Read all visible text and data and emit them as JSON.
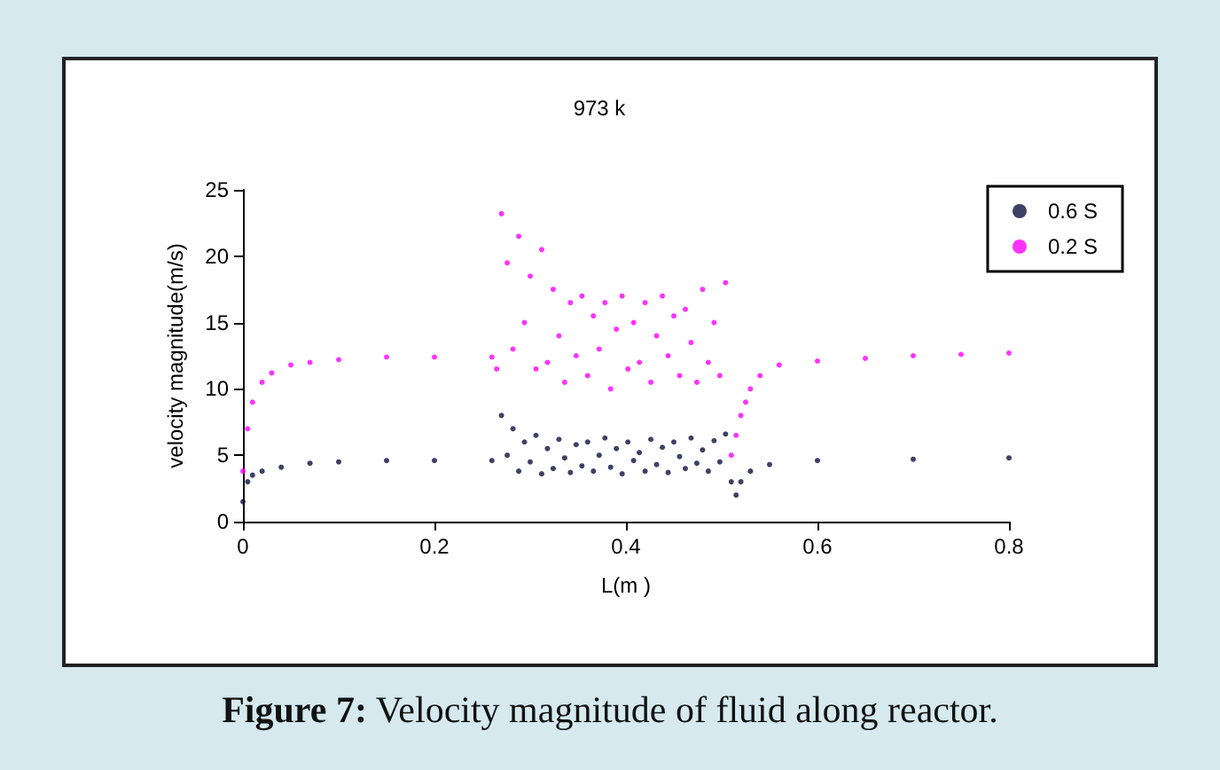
{
  "chart_data": {
    "type": "scatter",
    "title": "973 k",
    "xlabel": "L(m )",
    "ylabel": "velocity magnitude(m/s)",
    "annotations": [
      "Figure 7: Velocity magnitude of fluid along reactor."
    ],
    "xlim": [
      0,
      0.8
    ],
    "xticks": [
      0,
      0.2,
      0.4,
      0.6,
      0.8
    ],
    "ylim": [
      0,
      25
    ],
    "yticks": [
      0,
      5,
      10,
      15,
      20,
      25
    ],
    "grid": false,
    "legend": "top right",
    "marker": "circle",
    "series": [
      {
        "name": "0.6 S",
        "color": "#0d1240",
        "x": [
          0,
          0.005,
          0.01,
          0.02,
          0.04,
          0.07,
          0.1,
          0.15,
          0.2,
          0.26,
          0.27,
          0.276,
          0.282,
          0.288,
          0.294,
          0.3,
          0.306,
          0.312,
          0.318,
          0.324,
          0.33,
          0.336,
          0.342,
          0.348,
          0.354,
          0.36,
          0.366,
          0.372,
          0.378,
          0.384,
          0.39,
          0.396,
          0.402,
          0.408,
          0.414,
          0.42,
          0.426,
          0.432,
          0.438,
          0.444,
          0.45,
          0.456,
          0.462,
          0.468,
          0.474,
          0.48,
          0.486,
          0.492,
          0.498,
          0.504,
          0.51,
          0.515,
          0.52,
          0.53,
          0.55,
          0.6,
          0.7,
          0.8
        ],
        "values": [
          1.5,
          3,
          3.5,
          3.8,
          4.1,
          4.4,
          4.5,
          4.6,
          4.6,
          4.6,
          8,
          5,
          7,
          3.8,
          6,
          4.5,
          6.5,
          3.6,
          5.5,
          4,
          6.2,
          4.8,
          3.7,
          5.8,
          4.2,
          6,
          3.8,
          5,
          6.3,
          4.1,
          5.5,
          3.6,
          6,
          4.6,
          5.2,
          3.8,
          6.2,
          4.3,
          5.6,
          3.7,
          6,
          4.9,
          4,
          6.3,
          4.4,
          5.4,
          3.8,
          6.1,
          4.5,
          6.6,
          3,
          2,
          3,
          3.8,
          4.3,
          4.6,
          4.7,
          4.8
        ]
      },
      {
        "name": "0.2 S",
        "color": "#ff00ff",
        "x": [
          0,
          0.005,
          0.01,
          0.02,
          0.03,
          0.05,
          0.07,
          0.1,
          0.15,
          0.2,
          0.26,
          0.265,
          0.27,
          0.276,
          0.282,
          0.288,
          0.294,
          0.3,
          0.306,
          0.312,
          0.318,
          0.324,
          0.33,
          0.336,
          0.342,
          0.348,
          0.354,
          0.36,
          0.366,
          0.372,
          0.378,
          0.384,
          0.39,
          0.396,
          0.402,
          0.408,
          0.414,
          0.42,
          0.426,
          0.432,
          0.438,
          0.444,
          0.45,
          0.456,
          0.462,
          0.468,
          0.474,
          0.48,
          0.486,
          0.492,
          0.498,
          0.504,
          0.51,
          0.515,
          0.52,
          0.525,
          0.53,
          0.54,
          0.56,
          0.6,
          0.65,
          0.7,
          0.75,
          0.8
        ],
        "values": [
          3.8,
          7,
          9,
          10.5,
          11.2,
          11.8,
          12,
          12.2,
          12.4,
          12.4,
          12.4,
          11.5,
          23.2,
          19.5,
          13,
          21.5,
          15,
          18.5,
          11.5,
          20.5,
          12,
          17.5,
          14,
          10.5,
          16.5,
          12.5,
          17,
          11,
          15.5,
          13,
          16.5,
          10,
          14.5,
          17,
          11.5,
          15,
          12,
          16.5,
          10.5,
          14,
          17,
          12.5,
          15.5,
          11,
          16,
          13.5,
          10.5,
          17.5,
          12,
          15,
          11,
          18,
          5,
          6.5,
          8,
          9,
          10,
          11,
          11.8,
          12.1,
          12.3,
          12.5,
          12.6,
          12.7
        ]
      }
    ]
  }
}
